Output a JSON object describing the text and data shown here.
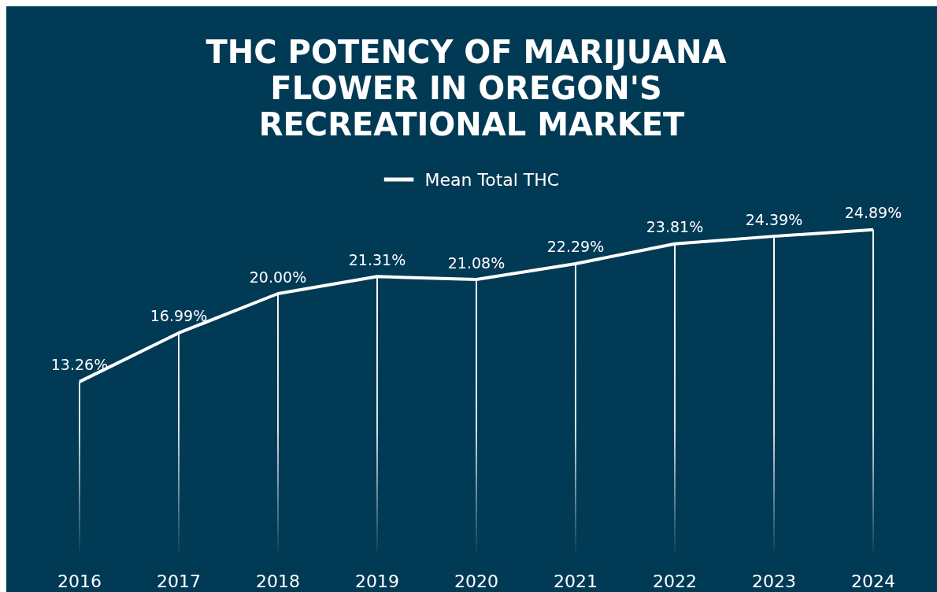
{
  "chart_data": {
    "type": "line",
    "title": "THC POTENCY OF MARIJUANA FLOWER IN OREGON'S RECREATIONAL MARKET",
    "categories": [
      "2016",
      "2017",
      "2018",
      "2019",
      "2020",
      "2021",
      "2022",
      "2023",
      "2024"
    ],
    "series": [
      {
        "name": "Mean Total THC",
        "color": "#ffffff",
        "values": [
          13.26,
          16.99,
          20.0,
          21.31,
          21.08,
          22.29,
          23.81,
          24.39,
          24.89
        ],
        "value_labels": [
          "13.26%",
          "16.99%",
          "20.00%",
          "21.31%",
          "21.08%",
          "22.29%",
          "23.81%",
          "24.39%",
          "24.89%"
        ]
      }
    ],
    "legend": "top",
    "marker": "none",
    "grid": "x"
  }
}
